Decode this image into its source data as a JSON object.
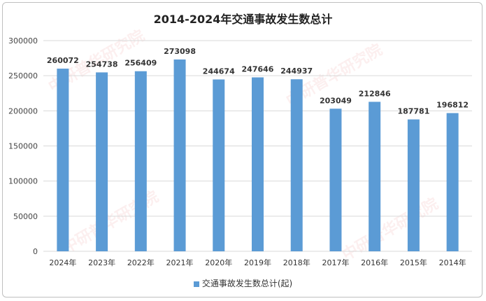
{
  "chart_data": {
    "type": "bar",
    "title": "2014-2024年交通事故发生数总计",
    "categories": [
      "2024年",
      "2023年",
      "2022年",
      "2021年",
      "2020年",
      "2019年",
      "2018年",
      "2017年",
      "2016年",
      "2015年",
      "2014年"
    ],
    "series": [
      {
        "name": "交通事故发生数总计(起)",
        "values": [
          260072,
          254738,
          256409,
          273098,
          244674,
          247646,
          244937,
          203049,
          212846,
          187781,
          196812
        ]
      }
    ],
    "ylim": [
      0,
      300000
    ],
    "yticks": [
      0,
      50000,
      100000,
      150000,
      200000,
      250000,
      300000
    ],
    "xlabel": "",
    "ylabel": "",
    "grid": true,
    "legend": "bottom",
    "color": "#5b9bd5"
  },
  "watermark": "中研普华研究院 www.ChinaIRN.com"
}
